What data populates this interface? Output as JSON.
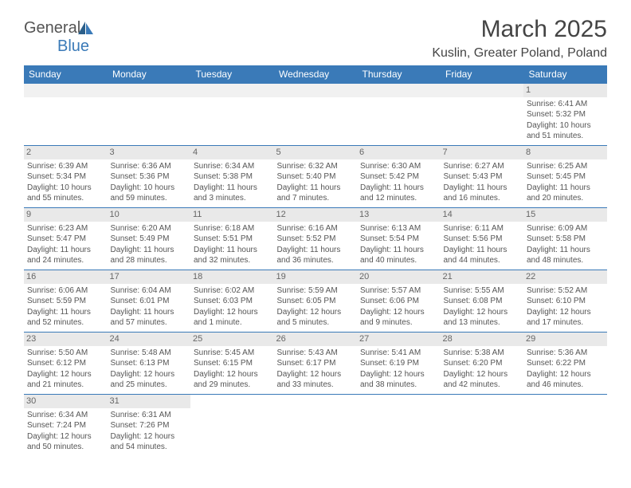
{
  "logo": {
    "text1": "General",
    "text2": "Blue"
  },
  "title": "March 2025",
  "subtitle": "Kuslin, Greater Poland, Poland",
  "header_bg": "#3a7ab8",
  "days_of_week": [
    "Sunday",
    "Monday",
    "Tuesday",
    "Wednesday",
    "Thursday",
    "Friday",
    "Saturday"
  ],
  "weeks": [
    [
      null,
      null,
      null,
      null,
      null,
      null,
      {
        "n": "1",
        "sr": "Sunrise: 6:41 AM",
        "ss": "Sunset: 5:32 PM",
        "dl": "Daylight: 10 hours and 51 minutes."
      }
    ],
    [
      {
        "n": "2",
        "sr": "Sunrise: 6:39 AM",
        "ss": "Sunset: 5:34 PM",
        "dl": "Daylight: 10 hours and 55 minutes."
      },
      {
        "n": "3",
        "sr": "Sunrise: 6:36 AM",
        "ss": "Sunset: 5:36 PM",
        "dl": "Daylight: 10 hours and 59 minutes."
      },
      {
        "n": "4",
        "sr": "Sunrise: 6:34 AM",
        "ss": "Sunset: 5:38 PM",
        "dl": "Daylight: 11 hours and 3 minutes."
      },
      {
        "n": "5",
        "sr": "Sunrise: 6:32 AM",
        "ss": "Sunset: 5:40 PM",
        "dl": "Daylight: 11 hours and 7 minutes."
      },
      {
        "n": "6",
        "sr": "Sunrise: 6:30 AM",
        "ss": "Sunset: 5:42 PM",
        "dl": "Daylight: 11 hours and 12 minutes."
      },
      {
        "n": "7",
        "sr": "Sunrise: 6:27 AM",
        "ss": "Sunset: 5:43 PM",
        "dl": "Daylight: 11 hours and 16 minutes."
      },
      {
        "n": "8",
        "sr": "Sunrise: 6:25 AM",
        "ss": "Sunset: 5:45 PM",
        "dl": "Daylight: 11 hours and 20 minutes."
      }
    ],
    [
      {
        "n": "9",
        "sr": "Sunrise: 6:23 AM",
        "ss": "Sunset: 5:47 PM",
        "dl": "Daylight: 11 hours and 24 minutes."
      },
      {
        "n": "10",
        "sr": "Sunrise: 6:20 AM",
        "ss": "Sunset: 5:49 PM",
        "dl": "Daylight: 11 hours and 28 minutes."
      },
      {
        "n": "11",
        "sr": "Sunrise: 6:18 AM",
        "ss": "Sunset: 5:51 PM",
        "dl": "Daylight: 11 hours and 32 minutes."
      },
      {
        "n": "12",
        "sr": "Sunrise: 6:16 AM",
        "ss": "Sunset: 5:52 PM",
        "dl": "Daylight: 11 hours and 36 minutes."
      },
      {
        "n": "13",
        "sr": "Sunrise: 6:13 AM",
        "ss": "Sunset: 5:54 PM",
        "dl": "Daylight: 11 hours and 40 minutes."
      },
      {
        "n": "14",
        "sr": "Sunrise: 6:11 AM",
        "ss": "Sunset: 5:56 PM",
        "dl": "Daylight: 11 hours and 44 minutes."
      },
      {
        "n": "15",
        "sr": "Sunrise: 6:09 AM",
        "ss": "Sunset: 5:58 PM",
        "dl": "Daylight: 11 hours and 48 minutes."
      }
    ],
    [
      {
        "n": "16",
        "sr": "Sunrise: 6:06 AM",
        "ss": "Sunset: 5:59 PM",
        "dl": "Daylight: 11 hours and 52 minutes."
      },
      {
        "n": "17",
        "sr": "Sunrise: 6:04 AM",
        "ss": "Sunset: 6:01 PM",
        "dl": "Daylight: 11 hours and 57 minutes."
      },
      {
        "n": "18",
        "sr": "Sunrise: 6:02 AM",
        "ss": "Sunset: 6:03 PM",
        "dl": "Daylight: 12 hours and 1 minute."
      },
      {
        "n": "19",
        "sr": "Sunrise: 5:59 AM",
        "ss": "Sunset: 6:05 PM",
        "dl": "Daylight: 12 hours and 5 minutes."
      },
      {
        "n": "20",
        "sr": "Sunrise: 5:57 AM",
        "ss": "Sunset: 6:06 PM",
        "dl": "Daylight: 12 hours and 9 minutes."
      },
      {
        "n": "21",
        "sr": "Sunrise: 5:55 AM",
        "ss": "Sunset: 6:08 PM",
        "dl": "Daylight: 12 hours and 13 minutes."
      },
      {
        "n": "22",
        "sr": "Sunrise: 5:52 AM",
        "ss": "Sunset: 6:10 PM",
        "dl": "Daylight: 12 hours and 17 minutes."
      }
    ],
    [
      {
        "n": "23",
        "sr": "Sunrise: 5:50 AM",
        "ss": "Sunset: 6:12 PM",
        "dl": "Daylight: 12 hours and 21 minutes."
      },
      {
        "n": "24",
        "sr": "Sunrise: 5:48 AM",
        "ss": "Sunset: 6:13 PM",
        "dl": "Daylight: 12 hours and 25 minutes."
      },
      {
        "n": "25",
        "sr": "Sunrise: 5:45 AM",
        "ss": "Sunset: 6:15 PM",
        "dl": "Daylight: 12 hours and 29 minutes."
      },
      {
        "n": "26",
        "sr": "Sunrise: 5:43 AM",
        "ss": "Sunset: 6:17 PM",
        "dl": "Daylight: 12 hours and 33 minutes."
      },
      {
        "n": "27",
        "sr": "Sunrise: 5:41 AM",
        "ss": "Sunset: 6:19 PM",
        "dl": "Daylight: 12 hours and 38 minutes."
      },
      {
        "n": "28",
        "sr": "Sunrise: 5:38 AM",
        "ss": "Sunset: 6:20 PM",
        "dl": "Daylight: 12 hours and 42 minutes."
      },
      {
        "n": "29",
        "sr": "Sunrise: 5:36 AM",
        "ss": "Sunset: 6:22 PM",
        "dl": "Daylight: 12 hours and 46 minutes."
      }
    ],
    [
      {
        "n": "30",
        "sr": "Sunrise: 6:34 AM",
        "ss": "Sunset: 7:24 PM",
        "dl": "Daylight: 12 hours and 50 minutes."
      },
      {
        "n": "31",
        "sr": "Sunrise: 6:31 AM",
        "ss": "Sunset: 7:26 PM",
        "dl": "Daylight: 12 hours and 54 minutes."
      },
      null,
      null,
      null,
      null,
      null
    ]
  ]
}
